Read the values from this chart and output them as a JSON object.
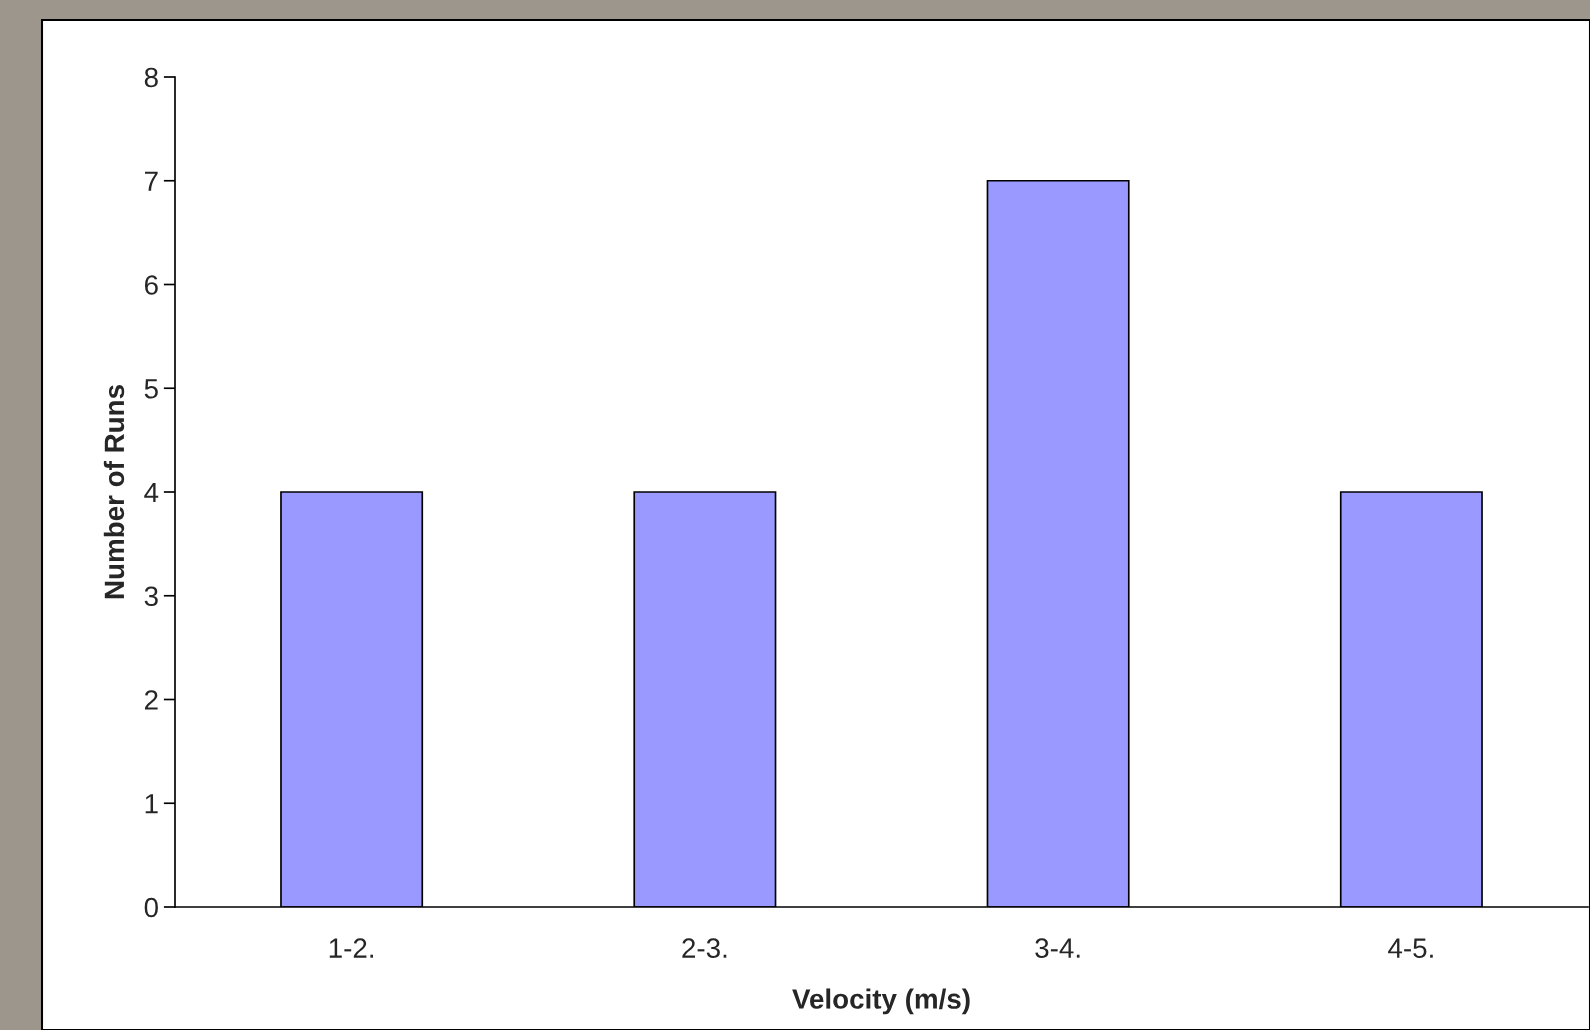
{
  "chart_data": {
    "type": "bar",
    "xlabel": "Velocity (m/s)",
    "ylabel": "Number of Runs",
    "categories": [
      "1-2.",
      "2-3.",
      "3-4.",
      "4-5."
    ],
    "values": [
      4,
      4,
      7,
      4
    ],
    "color": "#9999ff",
    "ylim": [
      0,
      8
    ],
    "yticks": [
      0,
      1,
      2,
      3,
      4,
      5,
      6,
      7,
      8
    ]
  }
}
